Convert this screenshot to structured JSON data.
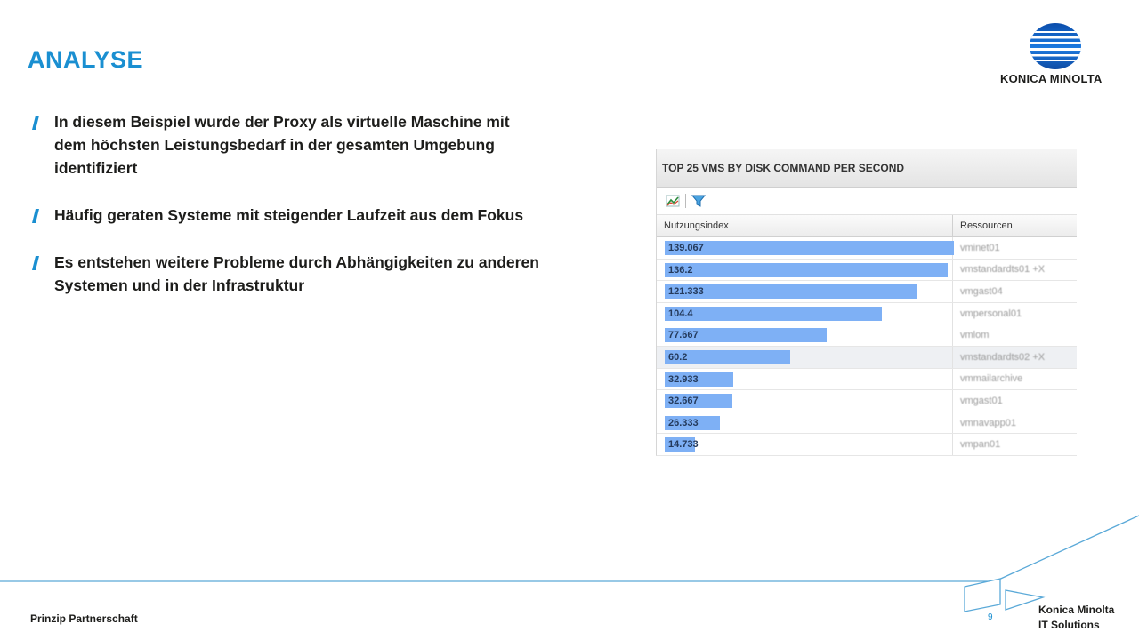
{
  "slide": {
    "title": "ANALYSE",
    "bullets": [
      "In diesem Beispiel wurde der Proxy als virtuelle Maschine mit dem höchsten Leistungsbedarf in der gesamten Umgebung identifiziert",
      "Häufig geraten Systeme mit steigender Laufzeit aus dem Fokus",
      "Es entstehen weitere Probleme durch Abhängigkeiten zu anderen Systemen und in der Infrastruktur"
    ]
  },
  "logo": {
    "text": "KONICA MINOLTA",
    "icon": "konica-minolta-globe-logo"
  },
  "panel": {
    "title": "TOP 25 VMS BY DISK COMMAND PER SECOND",
    "toolbar_icons": [
      "chart-icon",
      "filter-icon"
    ],
    "columns": [
      "Nutzungsindex",
      "Ressourcen"
    ],
    "max_value": 139.067,
    "rows": [
      {
        "value": "139.067",
        "num": 139.067,
        "resource": "vminet01"
      },
      {
        "value": "136.2",
        "num": 136.2,
        "resource": "vmstandardts01 +X"
      },
      {
        "value": "121.333",
        "num": 121.333,
        "resource": "vmgast04"
      },
      {
        "value": "104.4",
        "num": 104.4,
        "resource": "vmpersonal01"
      },
      {
        "value": "77.667",
        "num": 77.667,
        "resource": "vmlom"
      },
      {
        "value": "60.2",
        "num": 60.2,
        "resource": "vmstandardts02 +X"
      },
      {
        "value": "32.933",
        "num": 32.933,
        "resource": "vmmailarchive"
      },
      {
        "value": "32.667",
        "num": 32.667,
        "resource": "vmgast01"
      },
      {
        "value": "26.333",
        "num": 26.333,
        "resource": "vmnavapp01"
      },
      {
        "value": "14.733",
        "num": 14.733,
        "resource": "vmpan01"
      }
    ]
  },
  "footer": {
    "left": "Prinzip Partnerschaft",
    "page": "9",
    "company_line1": "Konica Minolta",
    "company_line2": "IT Solutions"
  },
  "colors": {
    "accent": "#1a8fd1",
    "bar": "#7eb0f5",
    "text": "#1d1d1b"
  }
}
